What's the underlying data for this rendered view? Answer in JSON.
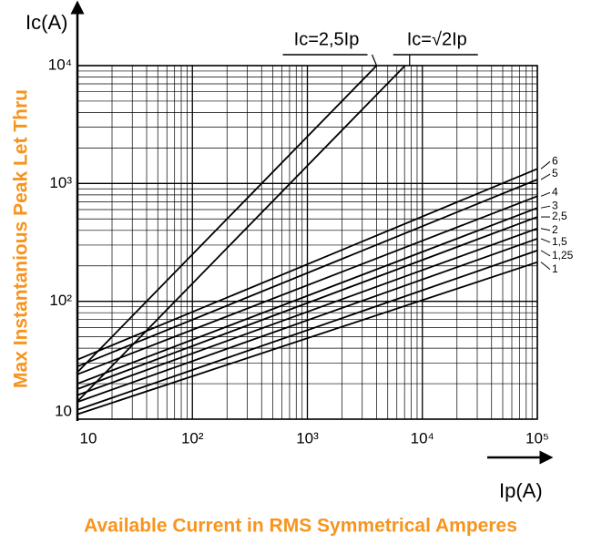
{
  "chart_data": {
    "type": "line",
    "log_x": true,
    "log_y": true,
    "grid": true,
    "y_label": "Max Instantanious Peak Let Thru",
    "x_label": "Available Current in RMS Symmetrical Amperes",
    "x_axis_label": "Ip(A)",
    "y_axis_label": "Ic(A)",
    "xlim": [
      10,
      100000
    ],
    "ylim": [
      10,
      10000
    ],
    "xticks": [
      10,
      {
        "value": 100,
        "label": "10²"
      },
      {
        "value": 1000,
        "label": "10³"
      },
      {
        "value": 10000,
        "label": "10⁴"
      },
      {
        "value": 100000,
        "label": "10⁵"
      }
    ],
    "yticks": [
      10,
      {
        "value": 100,
        "label": "10²"
      },
      {
        "value": 1000,
        "label": "10³"
      },
      {
        "value": 10000,
        "label": "10⁴"
      }
    ],
    "series": [
      {
        "name": "Ic=2,5Ip",
        "color": "#000000",
        "x": [
          10,
          4000
        ],
        "values": [
          25,
          10000
        ]
      },
      {
        "name": "Ic=√2Ip",
        "color": "#000000",
        "x": [
          10,
          7071
        ],
        "values": [
          14.14,
          10000
        ]
      },
      {
        "name": "6",
        "color": "#000000",
        "x": [
          10,
          100000
        ],
        "values": [
          32,
          1330
        ]
      },
      {
        "name": "5",
        "color": "#000000",
        "x": [
          10,
          100000
        ],
        "values": [
          28,
          1080
        ]
      },
      {
        "name": "4",
        "color": "#000000",
        "x": [
          10,
          100000
        ],
        "values": [
          24,
          780
        ]
      },
      {
        "name": "3",
        "color": "#000000",
        "x": [
          10,
          100000
        ],
        "values": [
          20,
          620
        ]
      },
      {
        "name": "2,5",
        "color": "#000000",
        "x": [
          10,
          100000
        ],
        "values": [
          18,
          520
        ]
      },
      {
        "name": "2",
        "color": "#000000",
        "x": [
          10,
          100000
        ],
        "values": [
          16,
          415
        ]
      },
      {
        "name": "1,5",
        "color": "#000000",
        "x": [
          10,
          100000
        ],
        "values": [
          14,
          340
        ]
      },
      {
        "name": "1,25",
        "color": "#000000",
        "x": [
          10,
          100000
        ],
        "values": [
          12,
          270
        ]
      },
      {
        "name": "1",
        "color": "#000000",
        "x": [
          10,
          100000
        ],
        "values": [
          11,
          215
        ]
      }
    ]
  }
}
